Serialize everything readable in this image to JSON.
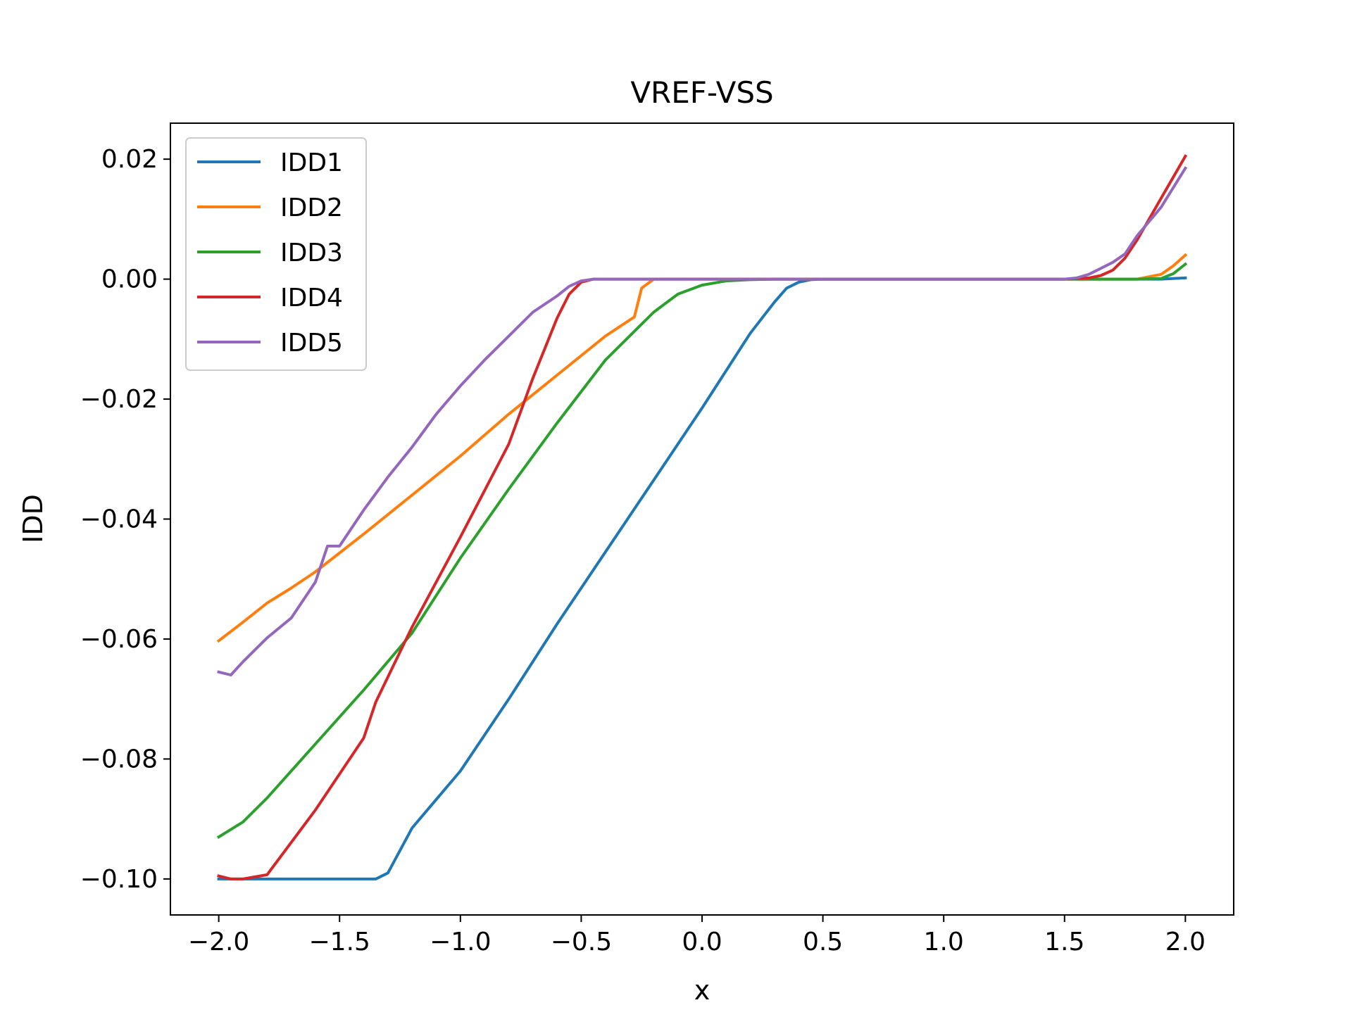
{
  "chart_data": {
    "type": "line",
    "title": "VREF-VSS",
    "xlabel": "x",
    "ylabel": "IDD",
    "xlim": [
      -2.2,
      2.2
    ],
    "ylim": [
      -0.106,
      0.026
    ],
    "xticks": [
      -2.0,
      -1.5,
      -1.0,
      -0.5,
      0.0,
      0.5,
      1.0,
      1.5,
      2.0
    ],
    "xtick_labels": [
      "−2.0",
      "−1.5",
      "−1.0",
      "−0.5",
      "0.0",
      "0.5",
      "1.0",
      "1.5",
      "2.0"
    ],
    "yticks": [
      0.02,
      0.0,
      -0.02,
      -0.04,
      -0.06,
      -0.08,
      -0.1
    ],
    "ytick_labels": [
      "0.02",
      "0.00",
      "−0.02",
      "−0.04",
      "−0.06",
      "−0.08",
      "−0.10"
    ],
    "grid": false,
    "legend_position": "top-left",
    "series": [
      {
        "name": "IDD1",
        "color": "#1f77b4",
        "x": [
          -2.0,
          -1.5,
          -1.35,
          -1.3,
          -1.2,
          -1.0,
          -0.8,
          -0.6,
          -0.4,
          -0.2,
          0.0,
          0.2,
          0.3,
          0.35,
          0.4,
          0.45,
          0.5,
          1.0,
          1.5,
          1.8,
          1.9,
          2.0
        ],
        "y": [
          -0.1,
          -0.1,
          -0.1,
          -0.099,
          -0.0915,
          -0.082,
          -0.07,
          -0.0575,
          -0.0455,
          -0.0335,
          -0.0215,
          -0.009,
          -0.0038,
          -0.0015,
          -0.0005,
          -0.0001,
          0.0,
          0.0,
          0.0,
          0.0,
          0.0,
          0.0002
        ]
      },
      {
        "name": "IDD2",
        "color": "#ff7f0e",
        "x": [
          -2.0,
          -1.9,
          -1.8,
          -1.7,
          -1.6,
          -1.4,
          -1.2,
          -1.0,
          -0.8,
          -0.6,
          -0.4,
          -0.28,
          -0.25,
          -0.2,
          -0.15,
          0.0,
          0.5,
          1.0,
          1.5,
          1.8,
          1.9,
          1.95,
          2.0
        ],
        "y": [
          -0.0603,
          -0.0572,
          -0.054,
          -0.0515,
          -0.0488,
          -0.0425,
          -0.036,
          -0.0295,
          -0.0225,
          -0.016,
          -0.0095,
          -0.0063,
          -0.0015,
          0.0,
          0.0,
          0.0,
          0.0,
          0.0,
          0.0,
          0.0,
          0.0008,
          0.0022,
          0.004
        ]
      },
      {
        "name": "IDD3",
        "color": "#2ca02c",
        "x": [
          -2.0,
          -1.9,
          -1.8,
          -1.6,
          -1.4,
          -1.2,
          -1.0,
          -0.8,
          -0.6,
          -0.4,
          -0.2,
          -0.1,
          0.0,
          0.1,
          0.2,
          0.3,
          0.5,
          1.0,
          1.5,
          1.8,
          1.9,
          1.95,
          2.0
        ],
        "y": [
          -0.093,
          -0.0905,
          -0.0865,
          -0.0775,
          -0.0685,
          -0.059,
          -0.0465,
          -0.035,
          -0.024,
          -0.0135,
          -0.0055,
          -0.0025,
          -0.001,
          -0.0003,
          -0.0001,
          0.0,
          0.0,
          0.0,
          0.0,
          0.0,
          0.0001,
          0.0009,
          0.0025
        ]
      },
      {
        "name": "IDD4",
        "color": "#d62728",
        "x": [
          -2.0,
          -1.95,
          -1.9,
          -1.8,
          -1.6,
          -1.4,
          -1.35,
          -1.2,
          -1.0,
          -0.8,
          -0.7,
          -0.6,
          -0.55,
          -0.5,
          -0.45,
          0.0,
          0.5,
          1.0,
          1.5,
          1.6,
          1.65,
          1.7,
          1.75,
          1.8,
          1.9,
          2.0
        ],
        "y": [
          -0.0995,
          -0.1,
          -0.1,
          -0.0993,
          -0.0885,
          -0.0765,
          -0.0705,
          -0.058,
          -0.043,
          -0.0275,
          -0.0165,
          -0.0065,
          -0.0025,
          -0.0005,
          0.0,
          0.0,
          0.0,
          0.0,
          0.0,
          0.0002,
          0.0006,
          0.0015,
          0.0035,
          0.0065,
          0.0135,
          0.0205
        ]
      },
      {
        "name": "IDD5",
        "color": "#9467bd",
        "x": [
          -2.0,
          -1.95,
          -1.9,
          -1.85,
          -1.8,
          -1.7,
          -1.6,
          -1.55,
          -1.5,
          -1.4,
          -1.3,
          -1.2,
          -1.1,
          -1.0,
          -0.9,
          -0.8,
          -0.7,
          -0.6,
          -0.55,
          -0.5,
          -0.45,
          -0.4,
          0.0,
          0.5,
          1.0,
          1.5,
          1.55,
          1.6,
          1.65,
          1.7,
          1.75,
          1.8,
          1.9,
          2.0
        ],
        "y": [
          -0.0655,
          -0.066,
          -0.0638,
          -0.0618,
          -0.0598,
          -0.0565,
          -0.0505,
          -0.0445,
          -0.0445,
          -0.0385,
          -0.033,
          -0.028,
          -0.0225,
          -0.0178,
          -0.0135,
          -0.0095,
          -0.0055,
          -0.0028,
          -0.0012,
          -0.0003,
          0.0,
          0.0,
          0.0,
          0.0,
          0.0,
          0.0,
          0.0002,
          0.0008,
          0.0018,
          0.0028,
          0.0042,
          0.0072,
          0.012,
          0.0185
        ]
      }
    ]
  }
}
